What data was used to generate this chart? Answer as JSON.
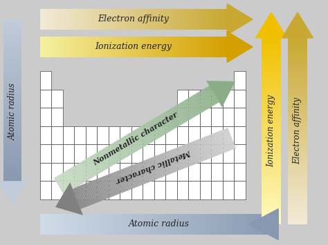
{
  "fig_bg": "#cbcbcb",
  "top_arrow1_label": "Electron affinity",
  "top_arrow2_label": "Ionization energy",
  "bottom_arrow_label": "Atomic radius",
  "left_arrow_label": "Atomic radius",
  "right_arrow1_label": "Ionization energy",
  "right_arrow2_label": "Electron affinity",
  "diag_arrow1_label": "Nonmetallic character",
  "diag_arrow2_label": "Metallic character",
  "ea_top_colors": [
    "#f2ead8",
    "#c8a830"
  ],
  "ie_top_colors": [
    "#f5f0a0",
    "#d4a000"
  ],
  "atomic_radius_colors": [
    "#8898b0",
    "#d0dce8"
  ],
  "left_arrow_colors": [
    "#c0ccda",
    "#8898b0"
  ],
  "right_ie_colors": [
    "#fef9c0",
    "#f0c000"
  ],
  "right_ea_colors": [
    "#f2ead8",
    "#c8a830"
  ],
  "nonmetallic_colors": [
    "#c8dcc4",
    "#8aad88"
  ],
  "metallic_colors": [
    "#d0d0d0",
    "#808080"
  ],
  "grid_color": "#444444",
  "font_color": "#222222"
}
